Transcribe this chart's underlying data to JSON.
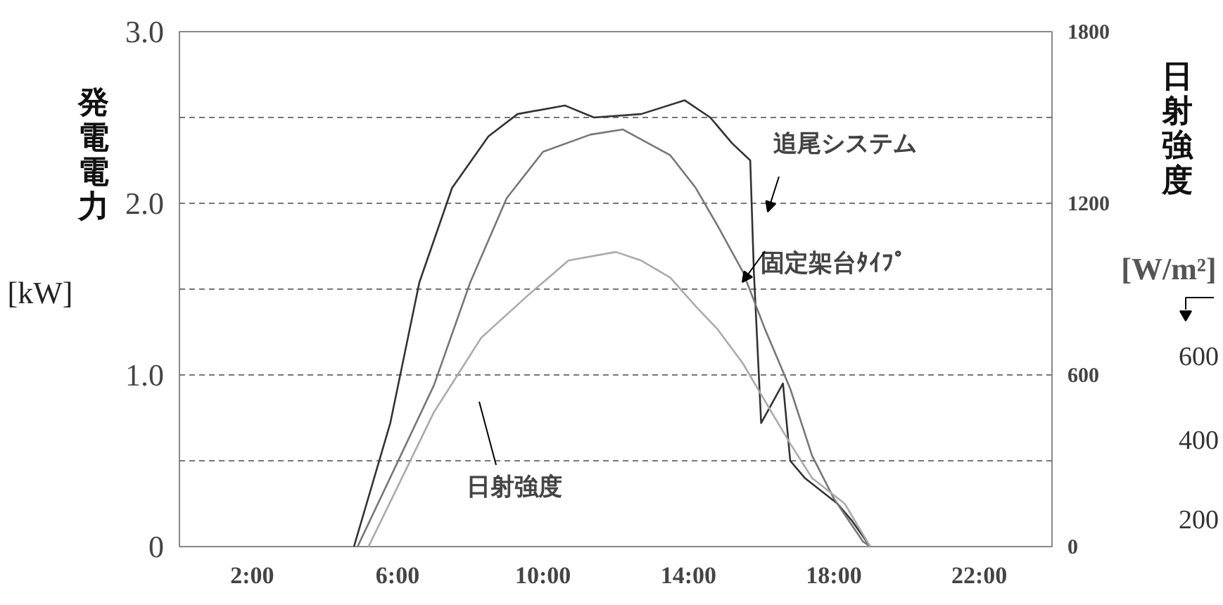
{
  "chart_data": {
    "type": "line",
    "ylabel": "発電電力 [kW]",
    "y2label": "日射強度 [W/m²]",
    "xlim": [
      0,
      24
    ],
    "ylim": [
      0,
      3
    ],
    "y2lim": [
      0,
      1800
    ],
    "xticks": [
      {
        "value": 2,
        "label": "2:00"
      },
      {
        "value": 6,
        "label": "6:00"
      },
      {
        "value": 10,
        "label": "10:00"
      },
      {
        "value": 14,
        "label": "14:00"
      },
      {
        "value": 18,
        "label": "18:00"
      },
      {
        "value": 22,
        "label": "22:00"
      }
    ],
    "yticks": [
      0,
      {
        "value": 0.5,
        "label": null
      },
      {
        "value": 1,
        "label": "1.0"
      },
      {
        "value": 1.5,
        "label": null
      },
      {
        "value": 2,
        "label": "2.0"
      },
      {
        "value": 2.5,
        "label": null
      },
      {
        "value": 3,
        "label": "3.0"
      }
    ],
    "y2ticks": [
      0,
      600,
      1200,
      1800
    ],
    "grid": "y",
    "line_style": "solid",
    "series": [
      {
        "color": "#333333",
        "x": [
          4.8,
          5.8,
          6.6,
          7.5,
          8.5,
          9.3,
          10.6,
          11.4,
          12.7,
          13.9,
          14.6,
          15.2,
          15.7,
          15.8,
          16.0,
          16.6,
          16.8,
          17.2,
          18.1,
          18.5,
          19.0
        ],
        "values": [
          0,
          0.72,
          1.54,
          2.09,
          2.39,
          2.52,
          2.57,
          2.5,
          2.52,
          2.6,
          2.5,
          2.35,
          2.25,
          1.6,
          0.72,
          0.95,
          0.5,
          0.4,
          0.25,
          0.15,
          0
        ]
      },
      {
        "color": "#777777",
        "x": [
          4.9,
          7.0,
          8.0,
          9.0,
          10.0,
          11.3,
          12.2,
          13.5,
          14.2,
          14.8,
          15.5,
          16.1,
          16.8,
          17.4,
          18.0,
          18.8,
          19.0
        ],
        "values": [
          0,
          0.94,
          1.54,
          2.03,
          2.3,
          2.4,
          2.43,
          2.28,
          2.09,
          1.87,
          1.6,
          1.27,
          0.92,
          0.53,
          0.28,
          0.03,
          0
        ]
      },
      {
        "color": "#aaaaaa",
        "axis": "y2",
        "x": [
          5.2,
          7.0,
          8.3,
          9.6,
          10.7,
          12.0,
          12.7,
          13.5,
          14.2,
          14.8,
          15.5,
          16.1,
          16.8,
          17.4,
          18.3,
          19.0
        ],
        "values": [
          0,
          470,
          730,
          880,
          1000,
          1030,
          1000,
          940,
          840,
          760,
          640,
          510,
          360,
          240,
          150,
          0
        ]
      }
    ],
    "annotations": [
      "追尾システム",
      "固定架台ﾀｲﾌﾟ",
      "日射強度",
      "600",
      "400",
      "200"
    ]
  }
}
